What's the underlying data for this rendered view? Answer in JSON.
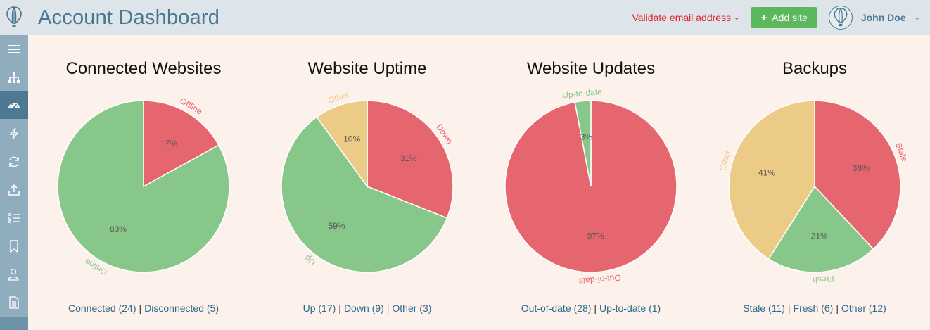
{
  "header": {
    "title": "Account Dashboard",
    "validate_label": "Validate email address",
    "add_site_label": "Add site",
    "user_name": "John Doe"
  },
  "sidebar": {
    "items": [
      {
        "icon": "menu-icon"
      },
      {
        "icon": "sitemap-icon"
      },
      {
        "icon": "dashboard-icon",
        "active": true
      },
      {
        "icon": "bolt-icon"
      },
      {
        "icon": "refresh-icon"
      },
      {
        "icon": "upload-icon"
      },
      {
        "icon": "list-icon"
      },
      {
        "icon": "bookmark-icon"
      },
      {
        "icon": "user-icon"
      },
      {
        "icon": "document-icon"
      }
    ]
  },
  "colors": {
    "green": "#88c78a",
    "red": "#e5666f",
    "yellow": "#ebcb86"
  },
  "chart_data": [
    {
      "type": "pie",
      "title": "Connected Websites",
      "slices": [
        {
          "label": "Offline",
          "value": 17,
          "color": "#e5666f"
        },
        {
          "label": "Online",
          "value": 83,
          "color": "#88c78a"
        }
      ],
      "legend": [
        {
          "text": "Connected (24)"
        },
        {
          "text": "Disconnected (5)"
        }
      ]
    },
    {
      "type": "pie",
      "title": "Website Uptime",
      "slices": [
        {
          "label": "Down",
          "value": 31,
          "color": "#e5666f"
        },
        {
          "label": "Up",
          "value": 59,
          "color": "#88c78a"
        },
        {
          "label": "Other",
          "value": 10,
          "color": "#ebcb86"
        }
      ],
      "legend": [
        {
          "text": "Up (17)"
        },
        {
          "text": "Down (9)"
        },
        {
          "text": "Other (3)"
        }
      ]
    },
    {
      "type": "pie",
      "title": "Website Updates",
      "slices": [
        {
          "label": "Out-of-date",
          "value": 97,
          "color": "#e5666f"
        },
        {
          "label": "Up-to-date",
          "value": 3,
          "color": "#88c78a"
        }
      ],
      "legend": [
        {
          "text": "Out-of-date (28)"
        },
        {
          "text": "Up-to-date (1)"
        }
      ]
    },
    {
      "type": "pie",
      "title": "Backups",
      "slices": [
        {
          "label": "Stale",
          "value": 38,
          "color": "#e5666f"
        },
        {
          "label": "Fresh",
          "value": 21,
          "color": "#88c78a"
        },
        {
          "label": "Other",
          "value": 41,
          "color": "#ebcb86"
        }
      ],
      "legend": [
        {
          "text": "Stale (11)"
        },
        {
          "text": "Fresh (6)"
        },
        {
          "text": "Other (12)"
        }
      ]
    }
  ]
}
